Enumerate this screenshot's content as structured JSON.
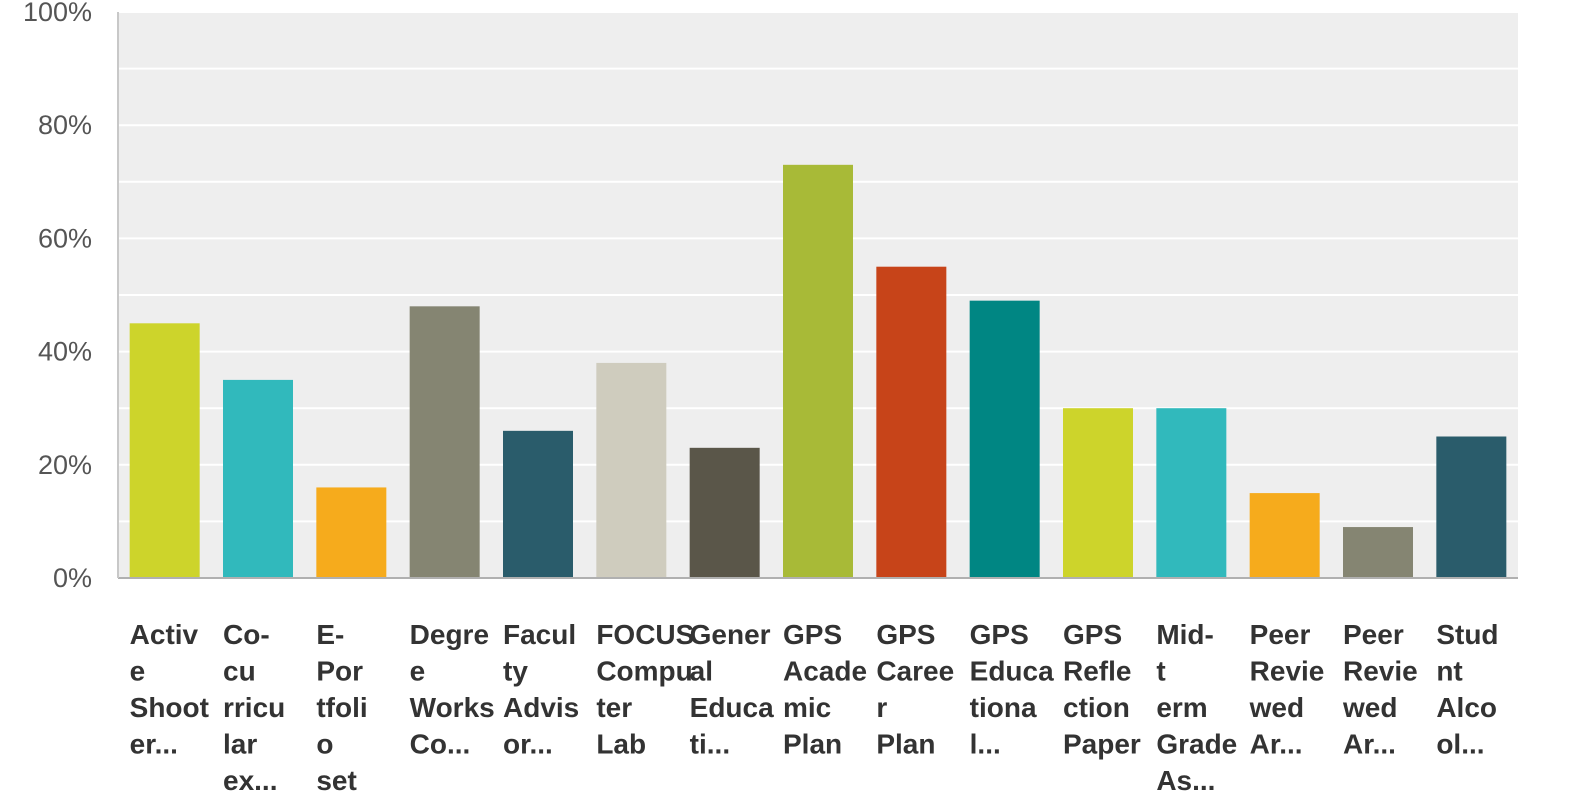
{
  "chart_data": {
    "type": "bar",
    "categories": [
      [
        "Activ",
        "e",
        "Shoot",
        "er..."
      ],
      [
        "Co-",
        "cu",
        "rricu",
        "lar",
        "ex..."
      ],
      [
        "E-",
        "Por",
        "tfoli",
        "o",
        "set"
      ],
      [
        "Degre",
        "e",
        "Works",
        "Co..."
      ],
      [
        "Facul",
        "ty",
        "Advis",
        "or..."
      ],
      [
        "FOCUS",
        "Compu",
        "ter",
        "Lab"
      ],
      [
        "Gener",
        "al",
        "Educa",
        "ti..."
      ],
      [
        "GPS",
        "Acade",
        "mic",
        "Plan"
      ],
      [
        "GPS",
        "Caree",
        "r",
        "Plan"
      ],
      [
        "GPS",
        "Educa",
        "tiona",
        "l..."
      ],
      [
        "GPS",
        "Refle",
        "ction",
        "Paper"
      ],
      [
        "Mid-",
        "t",
        "erm",
        "Grade",
        "As..."
      ],
      [
        "Peer",
        "Revie",
        "wed",
        "Ar..."
      ],
      [
        "Peer",
        "Revie",
        "wed",
        "Ar..."
      ],
      [
        "Stud",
        "nt",
        "Alco",
        "ol..."
      ]
    ],
    "values": [
      45,
      35,
      16,
      48,
      26,
      38,
      23,
      73,
      55,
      49,
      30,
      30,
      15,
      9,
      25
    ],
    "colors": [
      "#cdd42b",
      "#31b9bc",
      "#f6ab1c",
      "#858572",
      "#2a5c6b",
      "#cfccbe",
      "#5a5649",
      "#a8ba37",
      "#c74419",
      "#008683",
      "#cdd42b",
      "#31b9bc",
      "#f6ab1c",
      "#858572",
      "#2a5c6b"
    ],
    "y_tick_labels": [
      "0%",
      "20%",
      "40%",
      "60%",
      "80%",
      "100%"
    ],
    "ylim": [
      0,
      100
    ],
    "grid": true,
    "background": "#eeeeee",
    "title": "",
    "xlabel": "",
    "ylabel": ""
  }
}
